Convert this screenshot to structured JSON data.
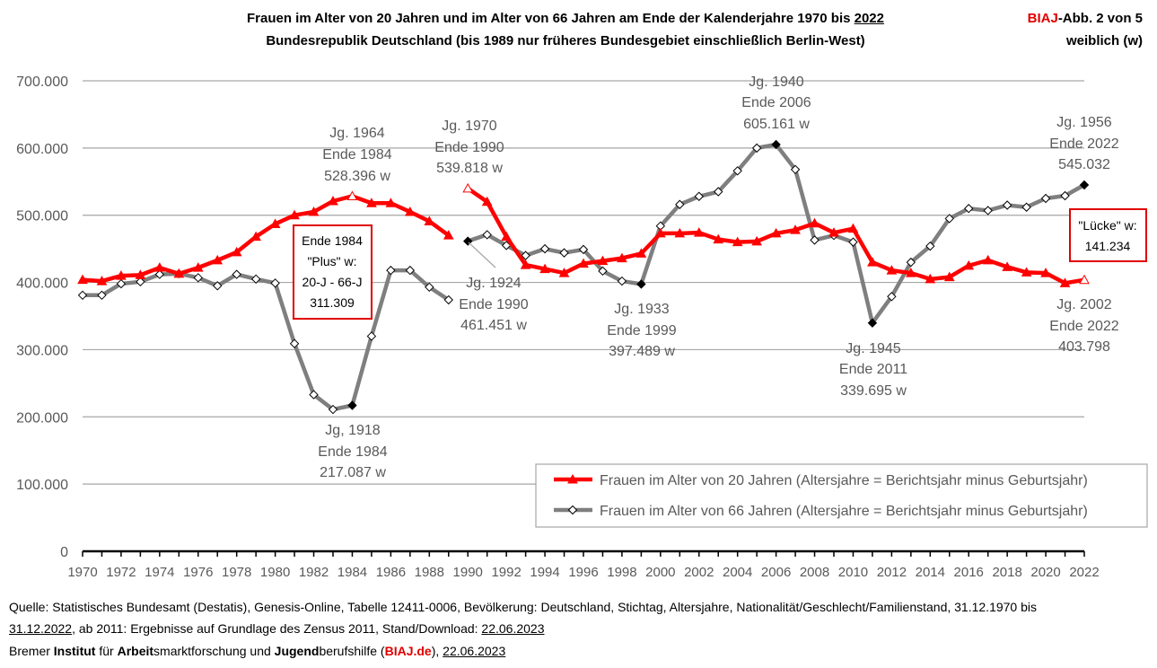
{
  "header": {
    "title_line1_main": "Frauen im Alter von 20 Jahren und im Alter von 66 Jahren am Ende der Kalenderjahre 1970 bis",
    "title_line1_year": "2022",
    "title_line2": "Bundesrepublik Deutschland (bis 1989 nur früheres Bundesgebiet einschließlich Berlin-West)",
    "badge_brand": "BIAJ",
    "badge_rest": "-Abb. 2 von 5",
    "badge_line2": "weiblich (w)"
  },
  "source": {
    "line1": "Quelle: Statistisches Bundesamt (Destatis), Genesis-Online, Tabelle 12411-0006, Bevölkerung: Deutschland, Stichtag, Altersjahre, Nationalität/Geschlecht/Familienstand, 31.12.1970 bis",
    "line2_date": "31.12.2022",
    "line2_mid": ", ab 2011: Ergebnisse auf Grundlage des Zensus 2011, Stand/Download: ",
    "line2_dl": "22.06.2023",
    "line3_a": "Bremer ",
    "line3_b": "Institut",
    "line3_c": " für ",
    "line3_d": "Arbeit",
    "line3_e": "smarktforschung und ",
    "line3_f": "Jugend",
    "line3_g": "berufshilfe (",
    "line3_h": "BIAJ.de",
    "line3_i": "), ",
    "line3_j": "22.06.2023"
  },
  "chart_data": {
    "type": "line",
    "x": [
      1970,
      1971,
      1972,
      1973,
      1974,
      1975,
      1976,
      1977,
      1978,
      1979,
      1980,
      1981,
      1982,
      1983,
      1984,
      1985,
      1986,
      1987,
      1988,
      1989,
      1990,
      1991,
      1992,
      1993,
      1994,
      1995,
      1996,
      1997,
      1998,
      1999,
      2000,
      2001,
      2002,
      2003,
      2004,
      2005,
      2006,
      2007,
      2008,
      2009,
      2010,
      2011,
      2012,
      2013,
      2014,
      2015,
      2016,
      2017,
      2018,
      2019,
      2020,
      2021,
      2022
    ],
    "ylim": [
      0,
      700000
    ],
    "y_ticks": [
      "0",
      "100.000",
      "200.000",
      "300.000",
      "400.000",
      "500.000",
      "600.000",
      "700.000"
    ],
    "x_ticks": [
      "1970",
      "1972",
      "1974",
      "1976",
      "1978",
      "1980",
      "1982",
      "1984",
      "1986",
      "1988",
      "1990",
      "1992",
      "1994",
      "1996",
      "1998",
      "2000",
      "2002",
      "2004",
      "2006",
      "2008",
      "2010",
      "2012",
      "2014",
      "2016",
      "2018",
      "2020",
      "2022"
    ],
    "series": [
      {
        "name": "Frauen im Alter von 20 Jahren (Altersjahre = Berichtsjahr minus Geburtsjahr)",
        "color": "#ff0000",
        "segment1": [
          404000,
          402000,
          410000,
          411000,
          422000,
          413000,
          422000,
          433000,
          445000,
          468000,
          487000,
          500000,
          505000,
          521000,
          528396,
          518000,
          518000,
          505000,
          491000,
          470000
        ],
        "segment2": [
          539818,
          520000,
          468000,
          426000,
          420000,
          414000,
          428000,
          432000,
          436000,
          443000,
          473000,
          473000,
          474000,
          464000,
          460000,
          461000,
          473000,
          478000,
          488000,
          474000,
          480000,
          430000,
          418000,
          414000,
          405000,
          408000,
          425000,
          433000,
          423000,
          415000,
          414000,
          399000,
          403798
        ]
      },
      {
        "name": "Frauen im Alter von 66 Jahren (Altersjahre = Berichtsjahr minus Geburtsjahr)",
        "color": "#7f7f7f",
        "segment1": [
          381000,
          381000,
          398000,
          401000,
          412000,
          413000,
          407000,
          395000,
          412000,
          405000,
          399000,
          309000,
          233000,
          211000,
          217087,
          320000,
          418000,
          418000,
          393000,
          374000
        ],
        "segment2": [
          461451,
          471000,
          455000,
          440000,
          450000,
          444000,
          449000,
          417000,
          402000,
          397489,
          484000,
          516000,
          528000,
          535000,
          566000,
          600000,
          605161,
          568000,
          463000,
          470000,
          460000,
          339695,
          379000,
          430000,
          454000,
          495000,
          510000,
          507000,
          515000,
          512000,
          525000,
          529000,
          545032
        ]
      }
    ],
    "annotations": {
      "jg1964": [
        "Jg. 1964",
        "Ende 1984",
        "528.396 w"
      ],
      "jg1970": [
        "Jg. 1970",
        "Ende 1990",
        "539.818 w"
      ],
      "jg1940": [
        "Jg. 1940",
        "Ende 2006",
        "605.161 w"
      ],
      "jg1956": [
        "Jg. 1956",
        "Ende 2022",
        "545.032"
      ],
      "jg1924": [
        "Jg. 1924",
        "Ende 1990",
        "461.451 w"
      ],
      "jg1933": [
        "Jg. 1933",
        "Ende 1999",
        "397.489 w"
      ],
      "jg2002": [
        "Jg. 2002",
        "Ende 2022",
        "403.798"
      ],
      "jg1945": [
        "Jg. 1945",
        "Ende 2011",
        "339.695 w"
      ],
      "jg1918": [
        "Jg, 1918",
        "Ende 1984",
        "217.087 w"
      ]
    },
    "boxes": {
      "plus": [
        "Ende 1984",
        "\"Plus\" w:",
        "20-J - 66-J",
        "311.309"
      ],
      "luecke": [
        "\"Lücke\" w:",
        "141.234"
      ]
    }
  }
}
